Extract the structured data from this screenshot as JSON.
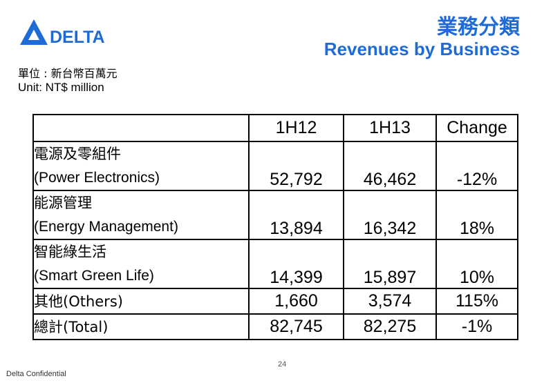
{
  "header": {
    "logo_text": "DELTA",
    "title_zh": "業務分類",
    "title_en": "Revenues by Business",
    "brand_color": "#1f6bd6"
  },
  "unit": {
    "zh": "單位 : 新台幣百萬元",
    "en": "Unit: NT$ million"
  },
  "table": {
    "headers": [
      "",
      "1H12",
      "1H13",
      "Change"
    ],
    "rows": [
      {
        "label_zh": "電源及零組件",
        "label_en": "(Power Electronics)",
        "h12": "52,792",
        "h13": "46,462",
        "change": "-12%"
      },
      {
        "label_zh": "能源管理",
        "label_en": "(Energy Management)",
        "h12": "13,894",
        "h13": "16,342",
        "change": "18%"
      },
      {
        "label_zh": "智能綠生活",
        "label_en": "(Smart Green Life)",
        "h12": "14,399",
        "h13": "15,897",
        "change": "10%"
      },
      {
        "label": "其他(Others)",
        "h12": "1,660",
        "h13": "3,574",
        "change": "115%"
      },
      {
        "label": "總計(Total)",
        "h12": "82,745",
        "h13": "82,275",
        "change": "-1%"
      }
    ]
  },
  "footer": {
    "page_number": "24",
    "confidential": "Delta Confidential"
  }
}
